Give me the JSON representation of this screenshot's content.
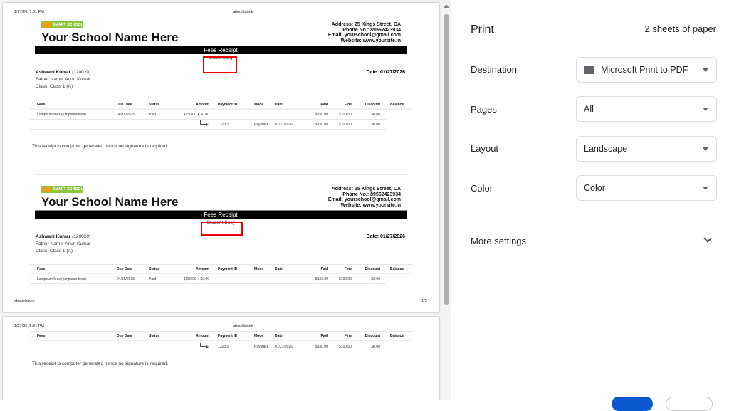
{
  "preview": {
    "header_datetime": "1/27/26, 5:31 PM",
    "header_url": "about:blank",
    "footer_url": "about:blank",
    "footer_page": "1/2",
    "school": {
      "logo_text": "SMART SCHOOL",
      "name": "Your School Name Here",
      "address": "Address: 25 Kings Street, CA",
      "phone": "Phone No.: 89562423934",
      "email": "Email: yourschool@gmail.com",
      "website": "Website: www.yoursite.in"
    },
    "receipt_title": "Fees Receipt",
    "copies": [
      "Office Copy",
      "Student Copy"
    ],
    "student": {
      "name": "Ashwani Kumar",
      "id": "(120020)",
      "father": "Father Name: Arjun Kumar",
      "class": "Class: Class 1 (A)",
      "date": "Date: 01/27/2026"
    },
    "table": {
      "headers": [
        "Fees",
        "Due Date",
        "Status",
        "Amount",
        "Payment ID",
        "Mode",
        "Date",
        "Paid",
        "Fine",
        "Discount",
        "Balance"
      ],
      "fee_row": [
        "Lumpsum fees (lumpsum-fees)",
        "04/15/2025",
        "Paid",
        "$150.00 + $0.00",
        "",
        "",
        "",
        "$150.00",
        "$100.00",
        "$0.00",
        ""
      ],
      "payment_row": [
        "",
        "",
        "",
        "",
        "1323/1",
        "Paystack",
        "01/27/2026",
        "$150.00",
        "$100.00",
        "$0.00",
        ""
      ]
    },
    "note": "This receipt is computer generated hence no signature is required."
  },
  "panel": {
    "title": "Print",
    "sheets": "2 sheets of paper",
    "settings": [
      {
        "label": "Destination",
        "value": "Microsoft Print to PDF",
        "icon": "printer-icon"
      },
      {
        "label": "Pages",
        "value": "All"
      },
      {
        "label": "Layout",
        "value": "Landscape"
      },
      {
        "label": "Color",
        "value": "Color"
      }
    ],
    "more_settings": "More settings"
  },
  "colors": {
    "highlight_box": "#ee0000",
    "primary_button": "#0b57d0",
    "logo_green": "#8dc63f"
  }
}
